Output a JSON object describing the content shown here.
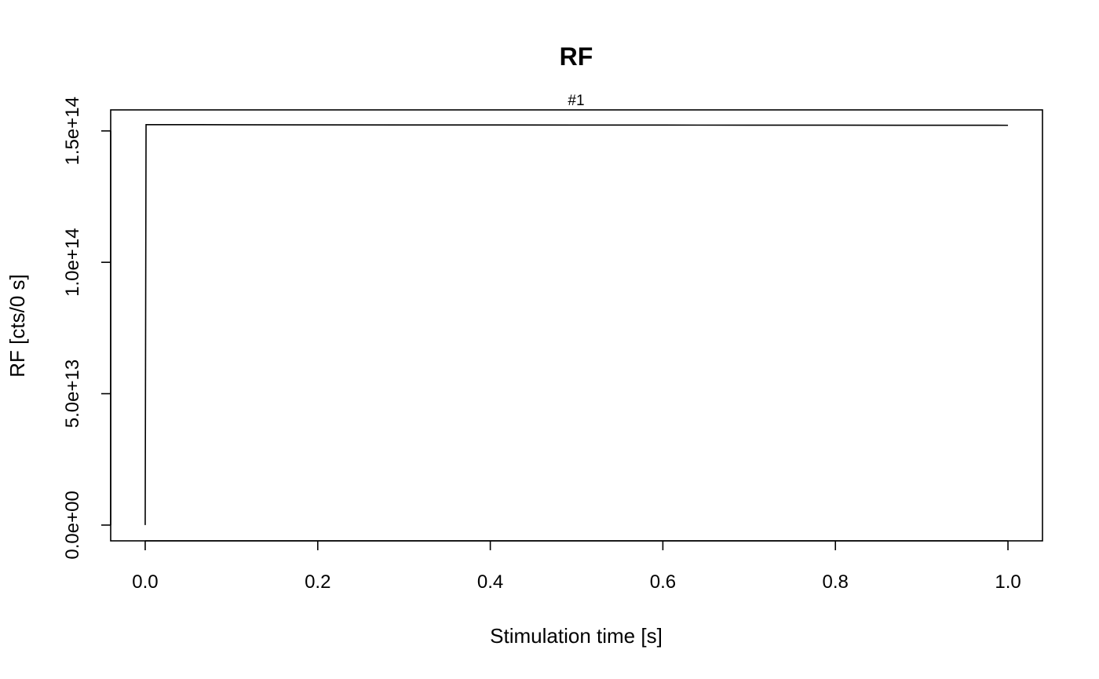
{
  "chart_data": {
    "type": "line",
    "title": "RF",
    "subtitle": "#1",
    "xlabel": "Stimulation time [s]",
    "ylabel": "RF [cts/0 s]",
    "xlim": [
      -0.04,
      1.04
    ],
    "ylim": [
      -6000000000000.0,
      158000000000000.0
    ],
    "x_ticks": [
      0,
      0.2,
      0.4,
      0.6,
      0.8,
      1.0
    ],
    "x_tick_labels": [
      "0.0",
      "0.2",
      "0.4",
      "0.6",
      "0.8",
      "1.0"
    ],
    "y_ticks": [
      0,
      50000000000000.0,
      100000000000000.0,
      150000000000000.0
    ],
    "y_tick_labels": [
      "0.0e+00",
      "5.0e+13",
      "1.0e+14",
      "1.5e+14"
    ],
    "grid": false,
    "series": [
      {
        "x": [
          0,
          0.001,
          0.1,
          0.2,
          0.3,
          0.4,
          0.5,
          0.6,
          0.7,
          0.8,
          0.9,
          1.0
        ],
        "y": [
          0,
          152400000000000.0,
          152350000000000.0,
          152300000000000.0,
          152280000000000.0,
          152260000000000.0,
          152240000000000.0,
          152220000000000.0,
          152200000000000.0,
          152180000000000.0,
          152160000000000.0,
          152140000000000.0
        ],
        "color": "#000000"
      }
    ]
  }
}
